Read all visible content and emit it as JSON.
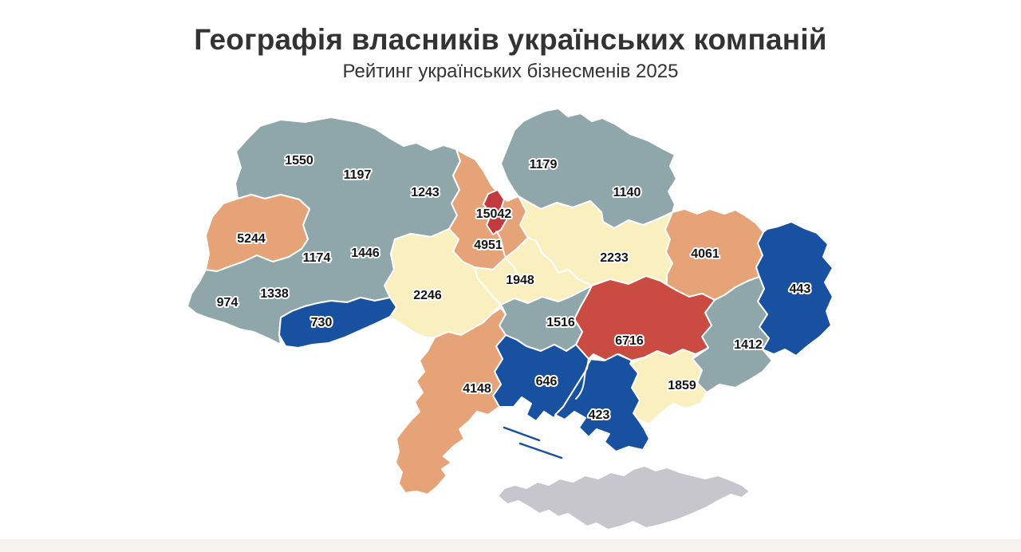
{
  "header": {
    "title": "Географія власників українських компаній",
    "subtitle": "Рейтинг українських бізнесменів 2025"
  },
  "palette": {
    "teal": "#8FA7AB",
    "salmon": "#E6A377",
    "yellow": "#FAF0BF",
    "blue": "#17519F",
    "red": "#C94B41",
    "crimson": "#C23A40",
    "gray": "#C6C6CC",
    "border": "#FFFFFF",
    "label_text": "#141414",
    "label_halo": "#FFFFFF",
    "title_text": "#333333"
  },
  "chart_data": {
    "type": "heatmap",
    "subtype": "choropleth_map",
    "geography": "Ukraine oblasts",
    "title": "Географія власників українських компаній",
    "subtitle": "Рейтинг українських бізнесменів 2025",
    "legend": "none",
    "regions": [
      {
        "id": "volyn",
        "value": 1550,
        "color": "teal"
      },
      {
        "id": "rivne",
        "value": 1197,
        "color": "teal"
      },
      {
        "id": "zhytomyr",
        "value": 1243,
        "color": "teal"
      },
      {
        "id": "chernihiv",
        "value": 1179,
        "color": "teal"
      },
      {
        "id": "sumy",
        "value": 1140,
        "color": "teal"
      },
      {
        "id": "lviv",
        "value": 5244,
        "color": "salmon"
      },
      {
        "id": "kyiv_city",
        "value": 15042,
        "color": "crimson"
      },
      {
        "id": "kyiv_oblast",
        "value": 4951,
        "color": "salmon"
      },
      {
        "id": "poltava",
        "value": 2233,
        "color": "yellow"
      },
      {
        "id": "kharkiv",
        "value": 4061,
        "color": "salmon"
      },
      {
        "id": "luhansk",
        "value": 443,
        "color": "blue"
      },
      {
        "id": "ternopil",
        "value": 1174,
        "color": "teal"
      },
      {
        "id": "khmelnytskyi",
        "value": 1446,
        "color": "teal"
      },
      {
        "id": "cherkasy",
        "value": 1948,
        "color": "yellow"
      },
      {
        "id": "zakarpattia",
        "value": 974,
        "color": "teal"
      },
      {
        "id": "ivano_frankivsk",
        "value": 1338,
        "color": "teal"
      },
      {
        "id": "vinnytsia",
        "value": 2246,
        "color": "yellow"
      },
      {
        "id": "chernivtsi",
        "value": 730,
        "color": "blue"
      },
      {
        "id": "kirovohrad",
        "value": 1516,
        "color": "teal"
      },
      {
        "id": "dnipropetrovsk",
        "value": 6716,
        "color": "red"
      },
      {
        "id": "donetsk",
        "value": 1412,
        "color": "teal"
      },
      {
        "id": "odesa",
        "value": 4148,
        "color": "salmon"
      },
      {
        "id": "mykolaiv",
        "value": 646,
        "color": "blue"
      },
      {
        "id": "kherson",
        "value": 423,
        "color": "blue"
      },
      {
        "id": "zaporizhzhia",
        "value": 1859,
        "color": "yellow"
      },
      {
        "id": "crimea",
        "value": null,
        "color": "gray"
      }
    ]
  }
}
